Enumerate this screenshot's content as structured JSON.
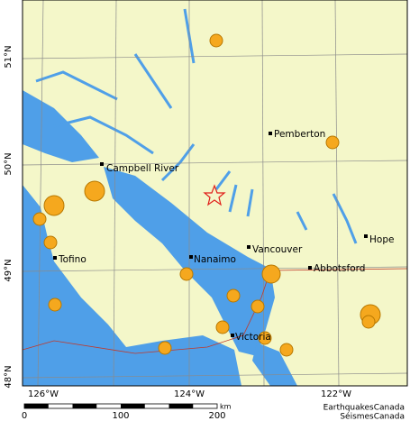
{
  "map": {
    "lat_labels": [
      "51°N",
      "50°N",
      "49°N",
      "48°N"
    ],
    "lon_labels": [
      "126°W",
      "124°W",
      "122°W"
    ],
    "places": [
      "Campbell River",
      "Pemberton",
      "Tofino",
      "Nanaimo",
      "Vancouver",
      "Abbotsford",
      "Hope",
      "Victoria"
    ],
    "scale": {
      "labels": [
        "0",
        "100",
        "200"
      ],
      "unit": "km"
    },
    "credits": [
      "EarthquakesCanada",
      "SéismesCanada"
    ]
  }
}
